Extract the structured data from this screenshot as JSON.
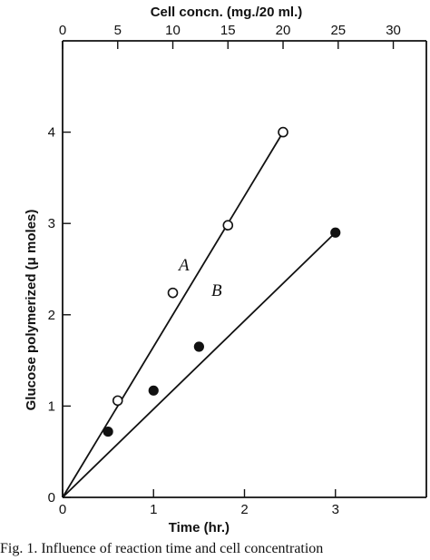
{
  "chart_data": {
    "type": "line",
    "x_bottom": {
      "label": "Time (hr.)",
      "range": [
        0,
        4
      ],
      "ticks": [
        0,
        1,
        2,
        3
      ],
      "tick_labels": [
        "0",
        "1",
        "2",
        "3"
      ]
    },
    "x_top": {
      "label": "Cell concn. (mg./20 ml.)",
      "range": [
        0,
        33
      ],
      "ticks": [
        0,
        5,
        10,
        15,
        20,
        25,
        30
      ],
      "tick_labels": [
        "0",
        "5",
        "10",
        "15",
        "20",
        "25",
        "30"
      ]
    },
    "y": {
      "label": "Glucose polymerized (μ moles)",
      "range": [
        0,
        5
      ],
      "ticks": [
        0,
        1,
        2,
        3,
        4
      ],
      "tick_labels": [
        "0",
        "1",
        "2",
        "3",
        "4"
      ]
    },
    "series": [
      {
        "name": "A",
        "axis": "x_top",
        "marker": "open-circle",
        "line": {
          "x": [
            0,
            20
          ],
          "y": [
            0,
            4
          ]
        },
        "points": [
          {
            "x": 5,
            "y": 1.06
          },
          {
            "x": 10,
            "y": 2.24
          },
          {
            "x": 15,
            "y": 2.98
          },
          {
            "x": 20,
            "y": 4.0
          }
        ]
      },
      {
        "name": "B",
        "axis": "x_bottom",
        "marker": "filled-circle",
        "line": {
          "x": [
            0,
            3
          ],
          "y": [
            0,
            2.9
          ]
        },
        "points": [
          {
            "x": 0.5,
            "y": 0.72
          },
          {
            "x": 1,
            "y": 1.17
          },
          {
            "x": 1.5,
            "y": 1.65
          },
          {
            "x": 3,
            "y": 2.9
          }
        ]
      }
    ]
  },
  "caption": "Fig. 1. Influence of reaction time and cell concentration"
}
